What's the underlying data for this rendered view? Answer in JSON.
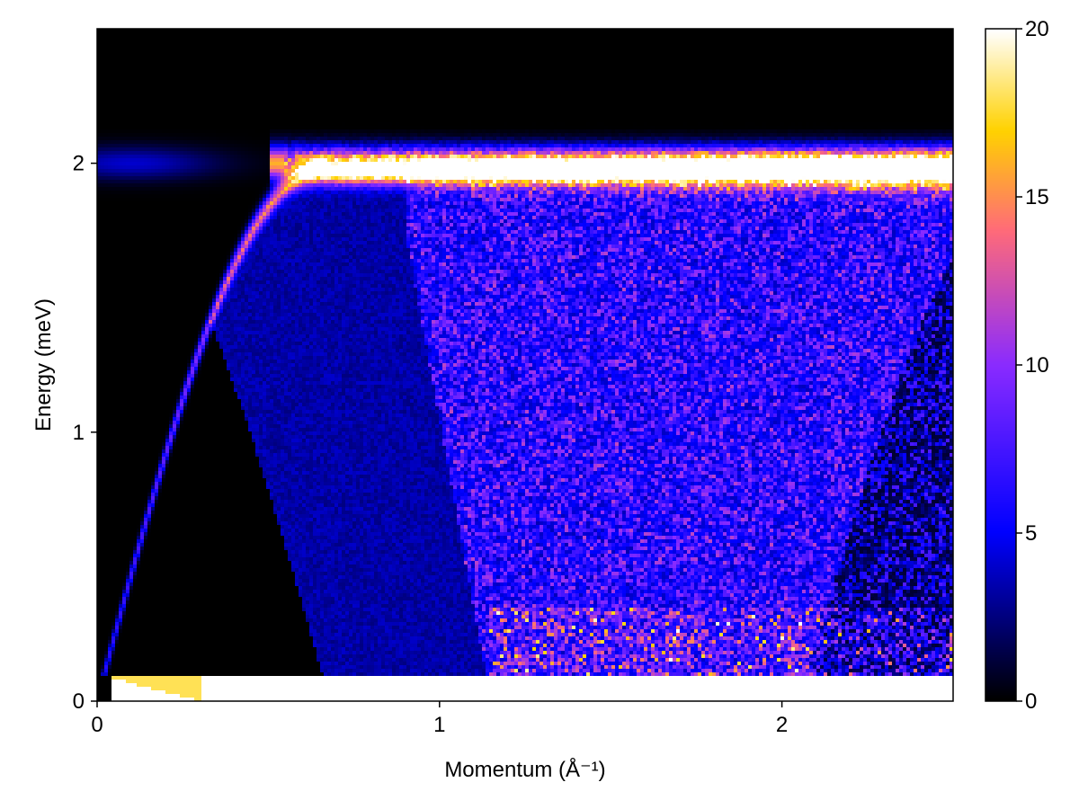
{
  "chart_data": {
    "type": "heatmap",
    "title": "",
    "xlabel": "Momentum (Å⁻¹)",
    "ylabel": "Energy (meV)",
    "xlim": [
      0,
      2.5
    ],
    "ylim": [
      0,
      2.5
    ],
    "x_ticks": [
      0,
      1,
      2
    ],
    "x_tick_labels": [
      "0",
      "1",
      "2"
    ],
    "y_ticks": [
      0,
      1,
      2
    ],
    "y_tick_labels": [
      "0",
      "1",
      "2"
    ],
    "grid": false,
    "colormap": {
      "name": "gnuplot2",
      "stops": [
        [
          0.0,
          "#000000"
        ],
        [
          0.25,
          "#0000ff"
        ],
        [
          0.5,
          "#8a2bff"
        ],
        [
          0.7,
          "#ff6a7a"
        ],
        [
          0.85,
          "#ffd200"
        ],
        [
          1.0,
          "#ffffff"
        ]
      ]
    },
    "colorbar": {
      "range": [
        0,
        20
      ],
      "ticks": [
        0,
        5,
        10,
        15,
        20
      ],
      "tick_labels": [
        "0",
        "5",
        "10",
        "15",
        "20"
      ],
      "placement": "right"
    },
    "features": {
      "upper_band_energy": 2.0,
      "upper_band_peak_intensity": 20,
      "dispersion_start_momentum": 0.0,
      "dispersion_max_momentum": 0.65,
      "dispersion_max_energy": 1.97,
      "low_energy_cutoff": 0.1,
      "continuum_onset_momentum": 1.15
    }
  }
}
